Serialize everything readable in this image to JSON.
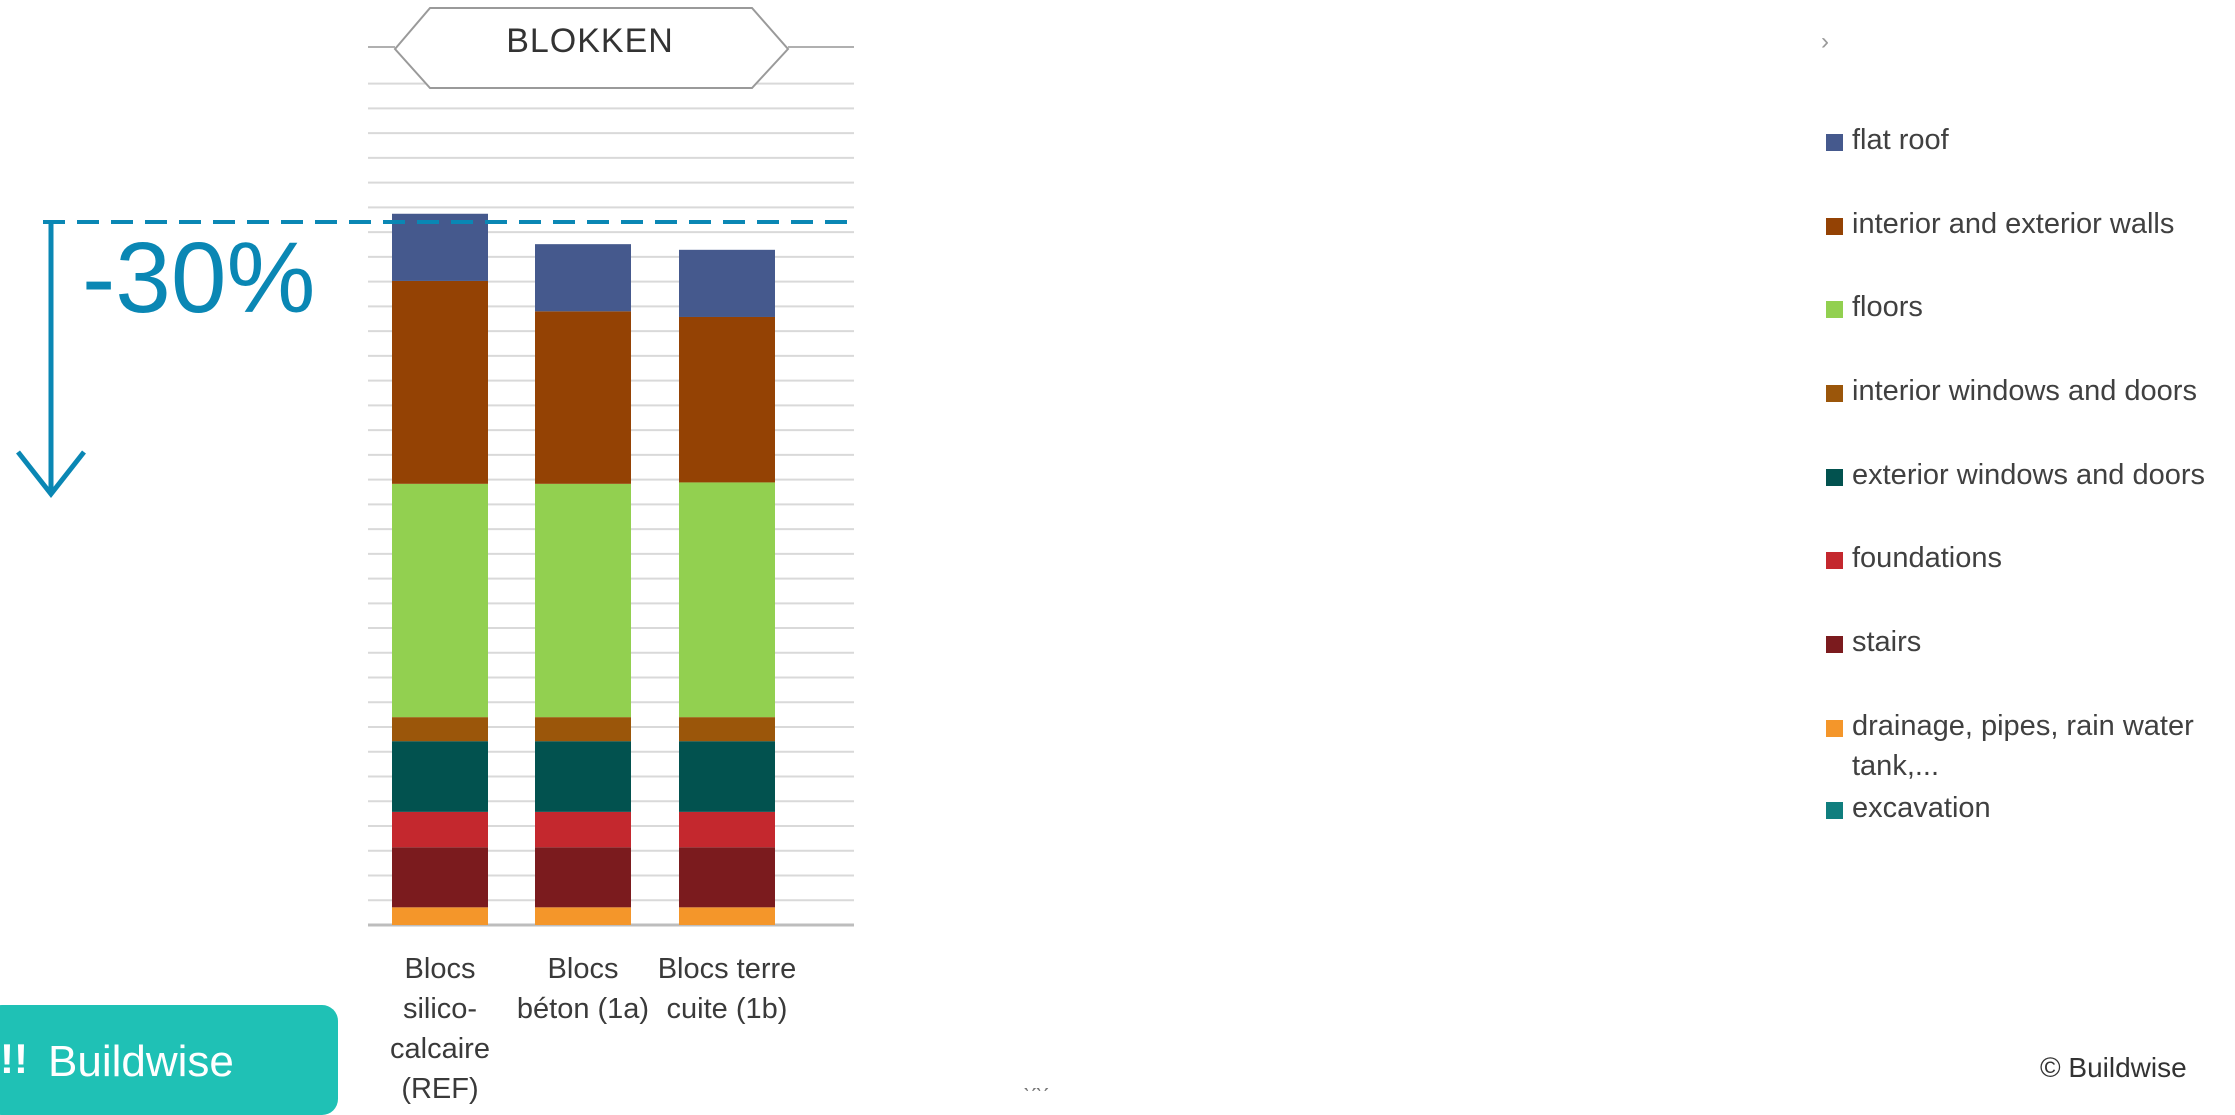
{
  "banner_title": "BLOKKEN",
  "reduction_label": "-30%",
  "legend_chevron": "›",
  "logo_text": "Buildwise",
  "logo_mark": "!!",
  "copyright": "© Buildwise",
  "stray_text": "̀ ́ ̀ ́",
  "chart_data": {
    "type": "bar",
    "stacked": true,
    "categories": [
      "Blocs\nsilico-\ncalcaire\n(REF)",
      "Blocs\nbéton (1a)",
      "Blocs terre\ncuite (1b)"
    ],
    "ylim": [
      0,
      100
    ],
    "grid": true,
    "legend_position": "right",
    "reference_line": 100,
    "series": [
      {
        "name": "drainage, pipes, rain water tank,...",
        "color": "#F4962A",
        "values": [
          2.5,
          2.5,
          2.5
        ]
      },
      {
        "name": "stairs",
        "color": "#7B1B1E",
        "values": [
          8.5,
          8.5,
          8.5
        ]
      },
      {
        "name": "foundations",
        "color": "#C4282E",
        "values": [
          5,
          5,
          5
        ]
      },
      {
        "name": "exterior windows and doors",
        "color": "#02524F",
        "values": [
          10,
          10,
          10
        ]
      },
      {
        "name": "interior windows and doors",
        "color": "#9B560A",
        "values": [
          3.4,
          3.4,
          3.4
        ]
      },
      {
        "name": "floors",
        "color": "#92D050",
        "values": [
          33,
          33,
          33.2
        ]
      },
      {
        "name": "interior and exterior walls",
        "color": "#944204",
        "values": [
          28.7,
          24.4,
          23.4
        ]
      },
      {
        "name": "flat roof",
        "color": "#45598D",
        "values": [
          9.5,
          9.5,
          9.5
        ]
      },
      {
        "name": "excavation",
        "color": "#107E7E",
        "values": [
          0,
          0,
          0
        ]
      }
    ],
    "legend_order": [
      "flat roof",
      "interior and exterior walls",
      "floors",
      "interior windows and doors",
      "exterior windows and doors",
      "foundations",
      "stairs",
      "drainage, pipes, rain water tank,...",
      "excavation"
    ]
  }
}
